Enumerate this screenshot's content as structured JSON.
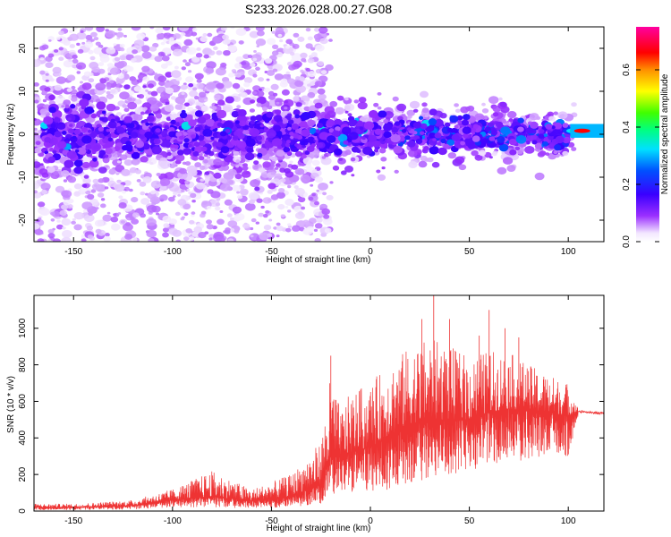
{
  "figure": {
    "title": "S233.2026.028.00.27.G08"
  },
  "chart_data": [
    {
      "type": "heatmap",
      "name": "spectrogram",
      "xlabel": "Height of straight line (km)",
      "ylabel": "Frequency (Hz)",
      "xlim": [
        -170,
        118
      ],
      "ylim": [
        -25,
        25
      ],
      "x_ticks": [
        "-150",
        "-100",
        "-50",
        "0",
        "50",
        "100"
      ],
      "y_ticks": [
        "-20",
        "-10",
        "0",
        "10",
        "20"
      ],
      "grid": false,
      "colorbar": {
        "label": "Normalized spectral amplitude",
        "range": [
          0.0,
          0.75
        ],
        "ticks": [
          "0.0",
          "0.2",
          "0.4",
          "0.6"
        ],
        "colormap": "rainbow (white-purple-blue-cyan-green-yellow-red-magenta)"
      },
      "description_values": [
        {
          "x_range": [
            -170,
            -25
          ],
          "freq_band": [
            -25,
            25
          ],
          "amplitude": 0.05
        },
        {
          "x_range": [
            -130,
            100
          ],
          "freq_band": [
            -8,
            6
          ],
          "amplitude": 0.12
        },
        {
          "x_range": [
            15,
            100
          ],
          "freq_band": [
            -5,
            5
          ],
          "amplitude": 0.22
        },
        {
          "x_range": [
            100,
            118
          ],
          "freq_band": [
            -0.5,
            2
          ],
          "amplitude": 0.7
        }
      ]
    },
    {
      "type": "line",
      "name": "snr",
      "xlabel": "Height of straight line (km)",
      "ylabel": "SNR (10 * v/v)",
      "xlim": [
        -170,
        118
      ],
      "ylim": [
        0,
        1180
      ],
      "x_ticks": [
        "-150",
        "-100",
        "-50",
        "0",
        "50",
        "100"
      ],
      "y_ticks": [
        "0",
        "200",
        "400",
        "600",
        "800",
        "1000"
      ],
      "grid": false,
      "series_color": "#ee3333",
      "envelope": {
        "x": [
          -170,
          -150,
          -120,
          -100,
          -80,
          -60,
          -40,
          -25,
          -20,
          -15,
          -10,
          0,
          10,
          20,
          30,
          40,
          50,
          60,
          70,
          80,
          90,
          100,
          105,
          110,
          118
        ],
        "low": [
          5,
          5,
          8,
          20,
          20,
          15,
          20,
          40,
          100,
          80,
          100,
          100,
          120,
          150,
          180,
          200,
          220,
          250,
          260,
          280,
          300,
          300,
          520,
          520,
          530
        ],
        "high": [
          40,
          40,
          60,
          120,
          220,
          120,
          200,
          380,
          750,
          550,
          650,
          700,
          820,
          900,
          950,
          900,
          850,
          880,
          870,
          800,
          750,
          700,
          560,
          550,
          540
        ],
        "mean": [
          20,
          20,
          30,
          60,
          80,
          55,
          80,
          150,
          300,
          300,
          320,
          350,
          420,
          480,
          500,
          500,
          500,
          540,
          560,
          550,
          540,
          520,
          545,
          540,
          535
        ]
      },
      "peaks": [
        {
          "x": -20,
          "y": 850
        },
        {
          "x": 26,
          "y": 1050
        },
        {
          "x": 32,
          "y": 1180
        },
        {
          "x": 40,
          "y": 1050
        },
        {
          "x": 55,
          "y": 960
        },
        {
          "x": 60,
          "y": 1100
        },
        {
          "x": 68,
          "y": 1000
        },
        {
          "x": 75,
          "y": 950
        }
      ]
    }
  ],
  "colors": {
    "snr_line": "#ee3333"
  }
}
